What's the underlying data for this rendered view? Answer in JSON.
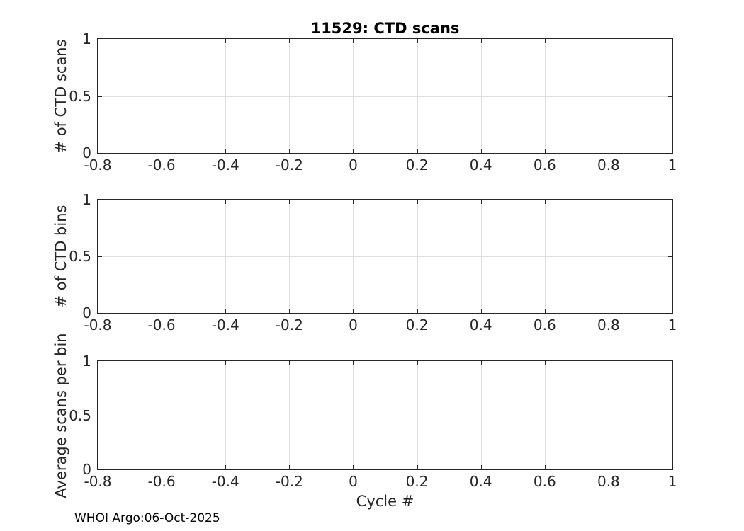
{
  "figure": {
    "title": "11529: CTD scans",
    "xlabel": "Cycle #",
    "footer": "WHOI Argo:06-Oct-2025"
  },
  "axis": {
    "xlim": [
      -0.8,
      1
    ],
    "ylim": [
      0,
      1
    ],
    "x_ticks": [
      -0.8,
      -0.6,
      -0.4,
      -0.2,
      0,
      0.2,
      0.4,
      0.6,
      0.8,
      1
    ],
    "x_tick_labels": [
      "-0.8",
      "-0.6",
      "-0.4",
      "-0.2",
      "0",
      "0.2",
      "0.4",
      "0.6",
      "0.8",
      "1"
    ],
    "y_ticks": [
      0,
      0.5,
      1
    ],
    "y_tick_labels": [
      "0",
      "0.5",
      "1"
    ]
  },
  "subplots": [
    {
      "ylabel": "# of CTD scans"
    },
    {
      "ylabel": "# of CTD bins"
    },
    {
      "ylabel": "Average scans per bin"
    }
  ],
  "colors": {
    "axis": "#262626",
    "grid": "#dedede",
    "title": "#000000",
    "background": "#ffffff"
  },
  "chart_data": [
    {
      "type": "line",
      "title": "11529: CTD scans",
      "xlabel": "",
      "ylabel": "# of CTD scans",
      "xlim": [
        -0.8,
        1
      ],
      "ylim": [
        0,
        1
      ],
      "x_ticks": [
        -0.8,
        -0.6,
        -0.4,
        -0.2,
        0,
        0.2,
        0.4,
        0.6,
        0.8,
        1
      ],
      "y_ticks": [
        0,
        0.5,
        1
      ],
      "grid": true,
      "legend": false,
      "series": []
    },
    {
      "type": "line",
      "title": "",
      "xlabel": "",
      "ylabel": "# of CTD bins",
      "xlim": [
        -0.8,
        1
      ],
      "ylim": [
        0,
        1
      ],
      "x_ticks": [
        -0.8,
        -0.6,
        -0.4,
        -0.2,
        0,
        0.2,
        0.4,
        0.6,
        0.8,
        1
      ],
      "y_ticks": [
        0,
        0.5,
        1
      ],
      "grid": true,
      "legend": false,
      "series": []
    },
    {
      "type": "line",
      "title": "",
      "xlabel": "Cycle #",
      "ylabel": "Average scans per bin",
      "xlim": [
        -0.8,
        1
      ],
      "ylim": [
        0,
        1
      ],
      "x_ticks": [
        -0.8,
        -0.6,
        -0.4,
        -0.2,
        0,
        0.2,
        0.4,
        0.6,
        0.8,
        1
      ],
      "y_ticks": [
        0,
        0.5,
        1
      ],
      "grid": true,
      "legend": false,
      "series": []
    }
  ]
}
